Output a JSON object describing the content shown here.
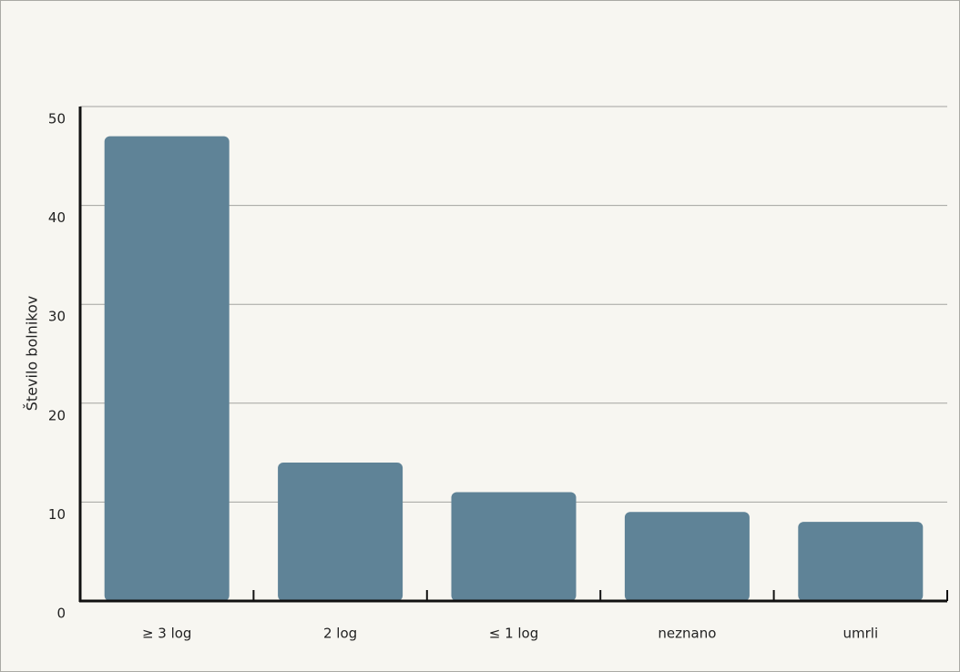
{
  "chart_data": {
    "type": "bar",
    "y_label": "Število bolnikov",
    "categories": [
      "≥ 3 log",
      "2 log",
      "≤ 1 log",
      "neznano",
      "umrli"
    ],
    "values": [
      47,
      14,
      11,
      9,
      8
    ],
    "color": "#5f8397",
    "ylim": [
      0,
      50
    ],
    "yticks": [
      0,
      10,
      20,
      30,
      40,
      50
    ],
    "grid": true
  }
}
